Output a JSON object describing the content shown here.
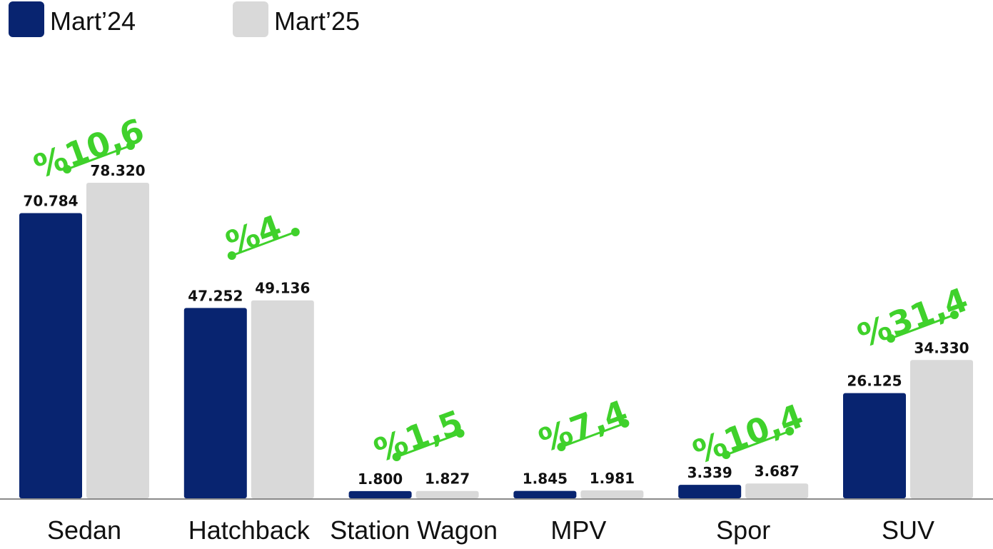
{
  "chart_data": {
    "type": "bar",
    "categories": [
      "Sedan",
      "Hatchback",
      "Station Wagon",
      "MPV",
      "Spor",
      "SUV"
    ],
    "series": [
      {
        "name": "Mart’24",
        "color": "#082470",
        "values": [
          70784,
          47252,
          1800,
          1845,
          3339,
          26125
        ],
        "value_labels": [
          "70.784",
          "47.252",
          "1.800",
          "1.845",
          "3.339",
          "26.125"
        ]
      },
      {
        "name": "Mart’25",
        "color": "#d9d9d9",
        "values": [
          78320,
          49136,
          1827,
          1981,
          3687,
          34330
        ],
        "value_labels": [
          "78.320",
          "49.136",
          "1.827",
          "1.981",
          "3.687",
          "34.330"
        ]
      }
    ],
    "annotations": [
      "%10,6",
      "%4",
      "%1,5",
      "%7,4",
      "%10,4",
      "%31,4"
    ],
    "annotation_color": "#3fd12b"
  }
}
